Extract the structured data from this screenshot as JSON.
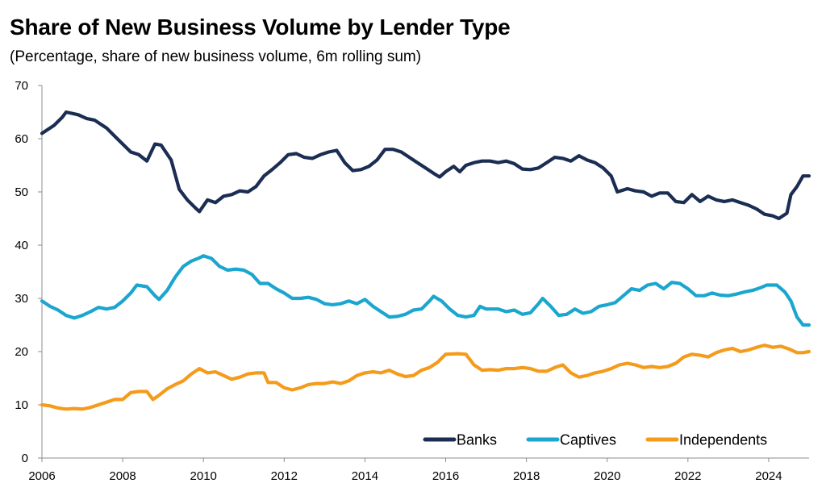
{
  "chart_data": {
    "type": "line",
    "title": "Share of New Business Volume by Lender Type",
    "subtitle": "(Percentage, share of new business volume, 6m rolling sum)",
    "xlabel": "",
    "ylabel": "",
    "xlim": [
      2006,
      2025
    ],
    "ylim": [
      0,
      70
    ],
    "x_ticks": [
      "2006",
      "2008",
      "2010",
      "2012",
      "2014",
      "2016",
      "2018",
      "2020",
      "2022",
      "2024"
    ],
    "y_ticks": [
      "0",
      "10",
      "20",
      "30",
      "40",
      "50",
      "60",
      "70"
    ],
    "grid": false,
    "legend_position": "bottom-right",
    "series": [
      {
        "name": "Banks",
        "color": "#1b2d52",
        "points": [
          [
            2006.0,
            61.0
          ],
          [
            2006.3,
            62.5
          ],
          [
            2006.5,
            64.0
          ],
          [
            2006.6,
            65.0
          ],
          [
            2006.9,
            64.5
          ],
          [
            2007.1,
            63.8
          ],
          [
            2007.3,
            63.5
          ],
          [
            2007.6,
            62.0
          ],
          [
            2007.8,
            60.5
          ],
          [
            2008.0,
            59.0
          ],
          [
            2008.2,
            57.5
          ],
          [
            2008.4,
            57.0
          ],
          [
            2008.6,
            55.8
          ],
          [
            2008.8,
            59.0
          ],
          [
            2008.95,
            58.8
          ],
          [
            2009.2,
            56.0
          ],
          [
            2009.4,
            50.5
          ],
          [
            2009.6,
            48.5
          ],
          [
            2009.8,
            47.0
          ],
          [
            2009.9,
            46.3
          ],
          [
            2010.1,
            48.5
          ],
          [
            2010.3,
            48.0
          ],
          [
            2010.5,
            49.2
          ],
          [
            2010.7,
            49.5
          ],
          [
            2010.9,
            50.2
          ],
          [
            2011.1,
            50.0
          ],
          [
            2011.3,
            51.0
          ],
          [
            2011.5,
            53.0
          ],
          [
            2011.7,
            54.2
          ],
          [
            2011.9,
            55.5
          ],
          [
            2012.1,
            57.0
          ],
          [
            2012.3,
            57.2
          ],
          [
            2012.5,
            56.5
          ],
          [
            2012.7,
            56.3
          ],
          [
            2012.9,
            57.0
          ],
          [
            2013.1,
            57.5
          ],
          [
            2013.3,
            57.8
          ],
          [
            2013.5,
            55.5
          ],
          [
            2013.7,
            54.0
          ],
          [
            2013.9,
            54.2
          ],
          [
            2014.1,
            54.8
          ],
          [
            2014.3,
            56.0
          ],
          [
            2014.5,
            58.0
          ],
          [
            2014.7,
            58.0
          ],
          [
            2014.9,
            57.5
          ],
          [
            2015.1,
            56.5
          ],
          [
            2015.3,
            55.5
          ],
          [
            2015.5,
            54.5
          ],
          [
            2015.7,
            53.5
          ],
          [
            2015.85,
            52.8
          ],
          [
            2016.0,
            53.8
          ],
          [
            2016.2,
            54.8
          ],
          [
            2016.35,
            53.8
          ],
          [
            2016.5,
            55.0
          ],
          [
            2016.7,
            55.5
          ],
          [
            2016.9,
            55.8
          ],
          [
            2017.1,
            55.8
          ],
          [
            2017.3,
            55.5
          ],
          [
            2017.5,
            55.8
          ],
          [
            2017.7,
            55.3
          ],
          [
            2017.9,
            54.3
          ],
          [
            2018.1,
            54.2
          ],
          [
            2018.3,
            54.5
          ],
          [
            2018.5,
            55.5
          ],
          [
            2018.7,
            56.5
          ],
          [
            2018.9,
            56.3
          ],
          [
            2019.1,
            55.8
          ],
          [
            2019.3,
            56.8
          ],
          [
            2019.5,
            56.0
          ],
          [
            2019.7,
            55.5
          ],
          [
            2019.9,
            54.5
          ],
          [
            2020.1,
            53.0
          ],
          [
            2020.25,
            50.0
          ],
          [
            2020.5,
            50.6
          ],
          [
            2020.7,
            50.2
          ],
          [
            2020.9,
            50.0
          ],
          [
            2021.1,
            49.2
          ],
          [
            2021.3,
            49.8
          ],
          [
            2021.5,
            49.8
          ],
          [
            2021.7,
            48.2
          ],
          [
            2021.9,
            48.0
          ],
          [
            2022.1,
            49.5
          ],
          [
            2022.3,
            48.2
          ],
          [
            2022.5,
            49.2
          ],
          [
            2022.7,
            48.5
          ],
          [
            2022.9,
            48.2
          ],
          [
            2023.1,
            48.5
          ],
          [
            2023.3,
            48.0
          ],
          [
            2023.5,
            47.5
          ],
          [
            2023.7,
            46.8
          ],
          [
            2023.9,
            45.8
          ],
          [
            2024.1,
            45.5
          ],
          [
            2024.25,
            45.0
          ],
          [
            2024.45,
            46.0
          ],
          [
            2024.55,
            49.5
          ],
          [
            2024.7,
            51.0
          ],
          [
            2024.85,
            53.0
          ],
          [
            2025.0,
            53.0
          ]
        ]
      },
      {
        "name": "Captives",
        "color": "#1ba6cf",
        "points": [
          [
            2006.0,
            29.5
          ],
          [
            2006.2,
            28.5
          ],
          [
            2006.4,
            27.8
          ],
          [
            2006.6,
            26.8
          ],
          [
            2006.8,
            26.3
          ],
          [
            2007.0,
            26.8
          ],
          [
            2007.2,
            27.5
          ],
          [
            2007.4,
            28.3
          ],
          [
            2007.6,
            28.0
          ],
          [
            2007.8,
            28.3
          ],
          [
            2008.0,
            29.5
          ],
          [
            2008.2,
            31.0
          ],
          [
            2008.35,
            32.5
          ],
          [
            2008.6,
            32.2
          ],
          [
            2008.8,
            30.5
          ],
          [
            2008.9,
            29.8
          ],
          [
            2009.1,
            31.5
          ],
          [
            2009.3,
            34.0
          ],
          [
            2009.5,
            36.0
          ],
          [
            2009.7,
            37.0
          ],
          [
            2009.9,
            37.6
          ],
          [
            2010.0,
            38.0
          ],
          [
            2010.2,
            37.5
          ],
          [
            2010.4,
            36.0
          ],
          [
            2010.6,
            35.3
          ],
          [
            2010.8,
            35.5
          ],
          [
            2011.0,
            35.3
          ],
          [
            2011.2,
            34.5
          ],
          [
            2011.4,
            32.8
          ],
          [
            2011.6,
            32.8
          ],
          [
            2011.8,
            31.8
          ],
          [
            2012.0,
            31.0
          ],
          [
            2012.2,
            30.0
          ],
          [
            2012.4,
            30.0
          ],
          [
            2012.6,
            30.2
          ],
          [
            2012.8,
            29.8
          ],
          [
            2013.0,
            29.0
          ],
          [
            2013.2,
            28.8
          ],
          [
            2013.4,
            29.0
          ],
          [
            2013.6,
            29.5
          ],
          [
            2013.8,
            29.0
          ],
          [
            2014.0,
            29.8
          ],
          [
            2014.2,
            28.5
          ],
          [
            2014.4,
            27.5
          ],
          [
            2014.6,
            26.5
          ],
          [
            2014.8,
            26.6
          ],
          [
            2015.0,
            27.0
          ],
          [
            2015.2,
            27.8
          ],
          [
            2015.4,
            28.0
          ],
          [
            2015.6,
            29.5
          ],
          [
            2015.7,
            30.4
          ],
          [
            2015.9,
            29.5
          ],
          [
            2016.1,
            28.0
          ],
          [
            2016.3,
            26.8
          ],
          [
            2016.5,
            26.5
          ],
          [
            2016.7,
            26.8
          ],
          [
            2016.85,
            28.5
          ],
          [
            2017.0,
            28.0
          ],
          [
            2017.3,
            28.0
          ],
          [
            2017.5,
            27.5
          ],
          [
            2017.7,
            27.8
          ],
          [
            2017.9,
            27.0
          ],
          [
            2018.1,
            27.3
          ],
          [
            2018.3,
            29.0
          ],
          [
            2018.4,
            30.0
          ],
          [
            2018.6,
            28.5
          ],
          [
            2018.8,
            26.8
          ],
          [
            2019.0,
            27.0
          ],
          [
            2019.2,
            28.0
          ],
          [
            2019.4,
            27.2
          ],
          [
            2019.6,
            27.5
          ],
          [
            2019.8,
            28.5
          ],
          [
            2020.0,
            28.8
          ],
          [
            2020.2,
            29.2
          ],
          [
            2020.4,
            30.5
          ],
          [
            2020.6,
            31.8
          ],
          [
            2020.8,
            31.5
          ],
          [
            2021.0,
            32.5
          ],
          [
            2021.2,
            32.8
          ],
          [
            2021.4,
            31.8
          ],
          [
            2021.6,
            33.0
          ],
          [
            2021.8,
            32.8
          ],
          [
            2022.0,
            31.8
          ],
          [
            2022.2,
            30.5
          ],
          [
            2022.4,
            30.5
          ],
          [
            2022.6,
            31.0
          ],
          [
            2022.8,
            30.6
          ],
          [
            2023.0,
            30.5
          ],
          [
            2023.2,
            30.8
          ],
          [
            2023.4,
            31.2
          ],
          [
            2023.6,
            31.5
          ],
          [
            2023.8,
            32.0
          ],
          [
            2023.95,
            32.5
          ],
          [
            2024.2,
            32.5
          ],
          [
            2024.4,
            31.2
          ],
          [
            2024.55,
            29.5
          ],
          [
            2024.7,
            26.5
          ],
          [
            2024.85,
            25.0
          ],
          [
            2025.0,
            25.0
          ]
        ]
      },
      {
        "name": "Independents",
        "color": "#f59b1c",
        "points": [
          [
            2006.0,
            10.0
          ],
          [
            2006.2,
            9.8
          ],
          [
            2006.4,
            9.4
          ],
          [
            2006.6,
            9.2
          ],
          [
            2006.8,
            9.3
          ],
          [
            2007.0,
            9.2
          ],
          [
            2007.2,
            9.5
          ],
          [
            2007.4,
            10.0
          ],
          [
            2007.6,
            10.5
          ],
          [
            2007.8,
            11.0
          ],
          [
            2008.0,
            11.0
          ],
          [
            2008.2,
            12.3
          ],
          [
            2008.4,
            12.5
          ],
          [
            2008.6,
            12.5
          ],
          [
            2008.75,
            11.0
          ],
          [
            2008.9,
            11.8
          ],
          [
            2009.1,
            13.0
          ],
          [
            2009.3,
            13.8
          ],
          [
            2009.5,
            14.5
          ],
          [
            2009.7,
            15.8
          ],
          [
            2009.9,
            16.8
          ],
          [
            2010.1,
            16.0
          ],
          [
            2010.3,
            16.2
          ],
          [
            2010.5,
            15.5
          ],
          [
            2010.7,
            14.8
          ],
          [
            2010.9,
            15.2
          ],
          [
            2011.1,
            15.8
          ],
          [
            2011.3,
            16.0
          ],
          [
            2011.5,
            16.0
          ],
          [
            2011.6,
            14.2
          ],
          [
            2011.8,
            14.2
          ],
          [
            2012.0,
            13.2
          ],
          [
            2012.2,
            12.8
          ],
          [
            2012.4,
            13.2
          ],
          [
            2012.6,
            13.8
          ],
          [
            2012.8,
            14.0
          ],
          [
            2013.0,
            14.0
          ],
          [
            2013.2,
            14.3
          ],
          [
            2013.4,
            14.0
          ],
          [
            2013.6,
            14.5
          ],
          [
            2013.8,
            15.5
          ],
          [
            2014.0,
            16.0
          ],
          [
            2014.2,
            16.2
          ],
          [
            2014.4,
            16.0
          ],
          [
            2014.6,
            16.5
          ],
          [
            2014.8,
            15.8
          ],
          [
            2015.0,
            15.3
          ],
          [
            2015.2,
            15.5
          ],
          [
            2015.4,
            16.5
          ],
          [
            2015.6,
            17.0
          ],
          [
            2015.8,
            18.0
          ],
          [
            2016.0,
            19.5
          ],
          [
            2016.3,
            19.6
          ],
          [
            2016.5,
            19.5
          ],
          [
            2016.7,
            17.5
          ],
          [
            2016.9,
            16.5
          ],
          [
            2017.1,
            16.6
          ],
          [
            2017.3,
            16.5
          ],
          [
            2017.5,
            16.8
          ],
          [
            2017.7,
            16.8
          ],
          [
            2017.9,
            17.0
          ],
          [
            2018.1,
            16.8
          ],
          [
            2018.3,
            16.3
          ],
          [
            2018.5,
            16.3
          ],
          [
            2018.7,
            17.0
          ],
          [
            2018.9,
            17.5
          ],
          [
            2019.1,
            16.0
          ],
          [
            2019.3,
            15.2
          ],
          [
            2019.5,
            15.5
          ],
          [
            2019.7,
            16.0
          ],
          [
            2019.9,
            16.3
          ],
          [
            2020.1,
            16.8
          ],
          [
            2020.3,
            17.5
          ],
          [
            2020.5,
            17.8
          ],
          [
            2020.7,
            17.5
          ],
          [
            2020.9,
            17.0
          ],
          [
            2021.1,
            17.2
          ],
          [
            2021.3,
            17.0
          ],
          [
            2021.5,
            17.2
          ],
          [
            2021.7,
            17.8
          ],
          [
            2021.9,
            19.0
          ],
          [
            2022.1,
            19.5
          ],
          [
            2022.3,
            19.3
          ],
          [
            2022.5,
            19.0
          ],
          [
            2022.7,
            19.8
          ],
          [
            2022.9,
            20.3
          ],
          [
            2023.1,
            20.6
          ],
          [
            2023.3,
            20.0
          ],
          [
            2023.5,
            20.3
          ],
          [
            2023.7,
            20.8
          ],
          [
            2023.9,
            21.2
          ],
          [
            2024.1,
            20.8
          ],
          [
            2024.3,
            21.0
          ],
          [
            2024.5,
            20.5
          ],
          [
            2024.7,
            19.8
          ],
          [
            2024.85,
            19.8
          ],
          [
            2025.0,
            20.0
          ]
        ]
      }
    ]
  }
}
